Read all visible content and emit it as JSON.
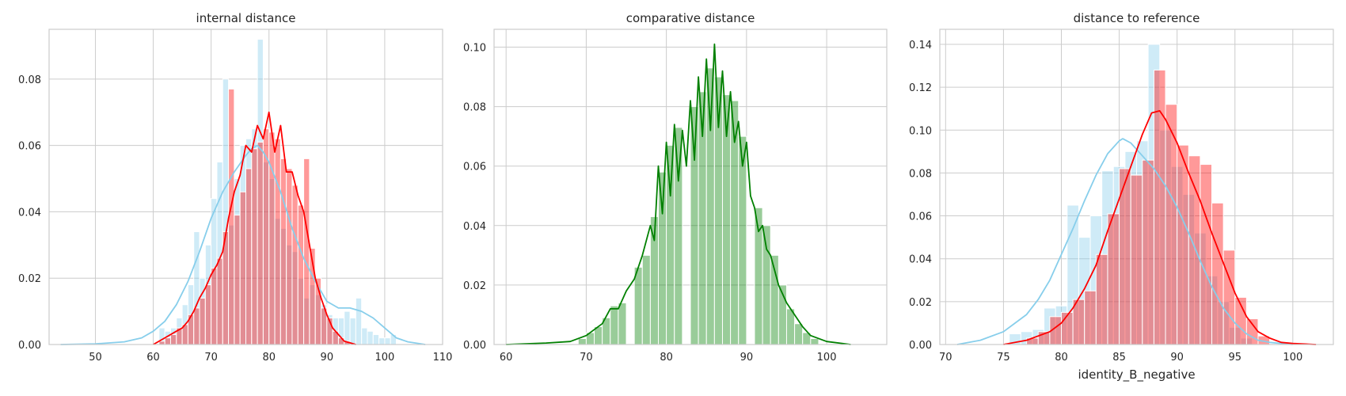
{
  "colors": {
    "sky": "#87ceeb",
    "red": "#ff0000",
    "green": "#008000"
  },
  "chart_data": [
    {
      "type": "histogram",
      "title": "internal distance",
      "xlabel": "",
      "ylabel": "",
      "xlim": [
        42,
        110
      ],
      "ylim": [
        0,
        0.095
      ],
      "xticks": [
        50,
        60,
        70,
        80,
        90,
        100,
        110
      ],
      "yticks": [
        0.0,
        0.02,
        0.04,
        0.06,
        0.08
      ],
      "ytick_labels": [
        "0.00",
        "0.02",
        "0.04",
        "0.06",
        "0.08"
      ],
      "grid": true,
      "series": [
        {
          "color": "#87ceeb",
          "hist": {
            "edges": [
              61,
              62,
              63,
              64,
              65,
              66,
              67,
              68,
              69,
              70,
              71,
              72,
              73,
              74,
              75,
              76,
              77,
              78,
              79,
              80,
              81,
              82,
              83,
              84,
              85,
              86,
              87,
              88,
              89,
              90,
              91,
              92,
              93,
              94,
              95,
              96,
              97,
              98,
              99,
              100,
              101,
              102
            ],
            "values": [
              0.005,
              0.004,
              0.005,
              0.008,
              0.012,
              0.018,
              0.034,
              0.02,
              0.03,
              0.044,
              0.055,
              0.08,
              0.036,
              0.05,
              0.06,
              0.062,
              0.065,
              0.092,
              0.055,
              0.05,
              0.038,
              0.035,
              0.03,
              0.028,
              0.02,
              0.014,
              0.018,
              0.015,
              0.012,
              0.009,
              0.008,
              0.008,
              0.01,
              0.008,
              0.014,
              0.005,
              0.004,
              0.003,
              0.002,
              0.002,
              0.003
            ]
          },
          "kde": {
            "x": [
              44,
              50,
              55,
              58,
              60,
              62,
              64,
              66,
              68,
              70,
              72,
              74,
              76,
              77,
              78,
              79,
              80,
              82,
              84,
              86,
              88,
              90,
              92,
              94,
              96,
              98,
              100,
              102,
              104,
              107
            ],
            "y": [
              0.0,
              0.0002,
              0.0008,
              0.002,
              0.004,
              0.007,
              0.012,
              0.019,
              0.028,
              0.038,
              0.046,
              0.052,
              0.057,
              0.059,
              0.06,
              0.058,
              0.055,
              0.046,
              0.035,
              0.026,
              0.019,
              0.013,
              0.011,
              0.011,
              0.01,
              0.008,
              0.005,
              0.002,
              0.0008,
              0.0
            ]
          }
        },
        {
          "color": "#ff0000",
          "hist": {
            "edges": [
              60,
              61,
              62,
              63,
              64,
              65,
              66,
              67,
              68,
              69,
              70,
              71,
              72,
              73,
              74,
              75,
              76,
              77,
              78,
              79,
              80,
              81,
              82,
              83,
              84,
              85,
              86,
              87,
              88,
              89,
              90,
              91,
              92,
              93,
              94,
              95
            ],
            "values": [
              0.0,
              0.001,
              0.002,
              0.003,
              0.005,
              0.006,
              0.009,
              0.011,
              0.014,
              0.018,
              0.023,
              0.026,
              0.034,
              0.077,
              0.039,
              0.046,
              0.053,
              0.059,
              0.061,
              0.065,
              0.064,
              0.062,
              0.056,
              0.053,
              0.048,
              0.042,
              0.056,
              0.029,
              0.02,
              0.011,
              0.008,
              0.004,
              0.002,
              0.001,
              0.0
            ]
          },
          "kde": {
            "x": [
              60,
              62,
              64,
              65,
              66,
              67,
              68,
              69,
              70,
              71,
              72,
              73,
              74,
              75,
              76,
              77,
              78,
              79,
              80,
              81,
              82,
              83,
              84,
              85,
              86,
              87,
              88,
              89,
              90,
              91,
              92,
              93,
              95
            ],
            "y": [
              0.0,
              0.002,
              0.004,
              0.005,
              0.007,
              0.01,
              0.014,
              0.017,
              0.021,
              0.024,
              0.028,
              0.038,
              0.046,
              0.051,
              0.06,
              0.058,
              0.066,
              0.062,
              0.07,
              0.058,
              0.066,
              0.052,
              0.052,
              0.045,
              0.04,
              0.03,
              0.02,
              0.014,
              0.009,
              0.005,
              0.003,
              0.001,
              0.0
            ]
          }
        }
      ]
    },
    {
      "type": "histogram",
      "title": "comparative distance",
      "xlabel": "",
      "ylabel": "",
      "xlim": [
        58.5,
        107.5
      ],
      "ylim": [
        0,
        0.106
      ],
      "xticks": [
        60,
        70,
        80,
        90,
        100
      ],
      "yticks": [
        0.0,
        0.02,
        0.04,
        0.06,
        0.08,
        0.1
      ],
      "ytick_labels": [
        "0.00",
        "0.02",
        "0.04",
        "0.06",
        "0.08",
        "0.10"
      ],
      "grid": true,
      "series": [
        {
          "color": "#008000",
          "hist": {
            "edges": [
              69,
              70,
              71,
              72,
              73,
              74,
              75,
              76,
              77,
              78,
              79,
              80,
              81,
              82,
              83,
              84,
              85,
              86,
              87,
              88,
              89,
              90,
              91,
              92,
              93,
              94,
              95,
              96,
              97,
              98,
              99
            ],
            "values": [
              0.002,
              0.004,
              0.006,
              0.009,
              0.013,
              0.014,
              0.0,
              0.026,
              0.03,
              0.043,
              0.058,
              0.067,
              0.073,
              0.0,
              0.08,
              0.085,
              0.093,
              0.09,
              0.084,
              0.082,
              0.07,
              0.0,
              0.046,
              0.04,
              0.03,
              0.02,
              0.012,
              0.007,
              0.004,
              0.002
            ]
          },
          "kde": {
            "x": [
              60,
              65,
              68,
              70,
              71,
              72,
              73,
              74,
              75,
              76,
              77,
              78,
              78.5,
              79,
              79.5,
              80,
              80.5,
              81,
              81.5,
              82,
              82.5,
              83,
              83.5,
              84,
              84.5,
              85,
              85.5,
              86,
              86.5,
              87,
              87.5,
              88,
              88.5,
              89,
              89.5,
              90,
              90.5,
              91,
              91.5,
              92,
              92.5,
              93,
              93.5,
              94,
              95,
              96,
              97,
              98,
              100,
              103
            ],
            "y": [
              0.0,
              0.0005,
              0.001,
              0.003,
              0.005,
              0.007,
              0.012,
              0.012,
              0.018,
              0.022,
              0.03,
              0.04,
              0.035,
              0.06,
              0.044,
              0.068,
              0.05,
              0.074,
              0.055,
              0.072,
              0.06,
              0.082,
              0.062,
              0.09,
              0.07,
              0.096,
              0.072,
              0.101,
              0.073,
              0.092,
              0.07,
              0.085,
              0.068,
              0.075,
              0.06,
              0.068,
              0.05,
              0.046,
              0.038,
              0.04,
              0.032,
              0.03,
              0.025,
              0.02,
              0.014,
              0.01,
              0.006,
              0.003,
              0.001,
              0.0
            ]
          }
        }
      ]
    },
    {
      "type": "histogram",
      "title": "distance to reference",
      "xlabel": "identity_B_negative",
      "ylabel": "",
      "xlim": [
        69.5,
        103.5
      ],
      "ylim": [
        0,
        0.147
      ],
      "xticks": [
        70,
        75,
        80,
        85,
        90,
        95,
        100
      ],
      "yticks": [
        0.0,
        0.02,
        0.04,
        0.06,
        0.08,
        0.1,
        0.12,
        0.14
      ],
      "ytick_labels": [
        "0.00",
        "0.02",
        "0.04",
        "0.06",
        "0.08",
        "0.10",
        "0.12",
        "0.14"
      ],
      "grid": true,
      "series": [
        {
          "color": "#87ceeb",
          "hist": {
            "edges": [
              75.5,
              76.5,
              77.5,
              78.5,
              79.5,
              80.5,
              81.5,
              82.5,
              83.5,
              84.5,
              85.5,
              86.5,
              87.5,
              88.5,
              89.5,
              90.5,
              91.5,
              92.5,
              93.5,
              94.5,
              95.5,
              96.5
            ],
            "values": [
              0.005,
              0.006,
              0.007,
              0.017,
              0.018,
              0.065,
              0.05,
              0.06,
              0.081,
              0.083,
              0.09,
              0.095,
              0.14,
              0.1,
              0.083,
              0.07,
              0.052,
              0.032,
              0.02,
              0.008,
              0.003
            ]
          },
          "kde": {
            "x": [
              71,
              73,
              75,
              77,
              78,
              79,
              80,
              81,
              82,
              83,
              84,
              85,
              85.3,
              86,
              87,
              88,
              89,
              90,
              91,
              92,
              93,
              94,
              95,
              96,
              97,
              98,
              100
            ],
            "y": [
              0.0,
              0.002,
              0.006,
              0.014,
              0.021,
              0.03,
              0.042,
              0.054,
              0.067,
              0.079,
              0.089,
              0.095,
              0.096,
              0.094,
              0.088,
              0.082,
              0.074,
              0.064,
              0.052,
              0.039,
              0.027,
              0.017,
              0.01,
              0.005,
              0.002,
              0.001,
              0.0
            ]
          }
        },
        {
          "color": "#ff0000",
          "hist": {
            "edges": [
              77,
              78,
              79,
              80,
              81,
              82,
              83,
              84,
              85,
              86,
              87,
              88,
              89,
              90,
              91,
              92,
              93,
              94,
              95,
              96,
              97,
              98
            ],
            "values": [
              0.003,
              0.006,
              0.013,
              0.015,
              0.021,
              0.025,
              0.042,
              0.061,
              0.082,
              0.079,
              0.086,
              0.128,
              0.112,
              0.093,
              0.088,
              0.084,
              0.066,
              0.044,
              0.022,
              0.012,
              0.004
            ]
          },
          "kde": {
            "x": [
              75,
              77,
              79,
              80,
              81,
              82,
              83,
              84,
              85,
              86,
              87,
              87.8,
              88.5,
              89,
              90,
              91,
              92,
              93,
              94,
              95,
              96,
              97,
              98,
              99,
              100,
              102
            ],
            "y": [
              0.0,
              0.002,
              0.006,
              0.01,
              0.017,
              0.026,
              0.037,
              0.053,
              0.068,
              0.083,
              0.098,
              0.108,
              0.109,
              0.105,
              0.094,
              0.08,
              0.067,
              0.052,
              0.038,
              0.024,
              0.013,
              0.006,
              0.003,
              0.001,
              0.0005,
              0.0
            ]
          }
        }
      ]
    }
  ]
}
